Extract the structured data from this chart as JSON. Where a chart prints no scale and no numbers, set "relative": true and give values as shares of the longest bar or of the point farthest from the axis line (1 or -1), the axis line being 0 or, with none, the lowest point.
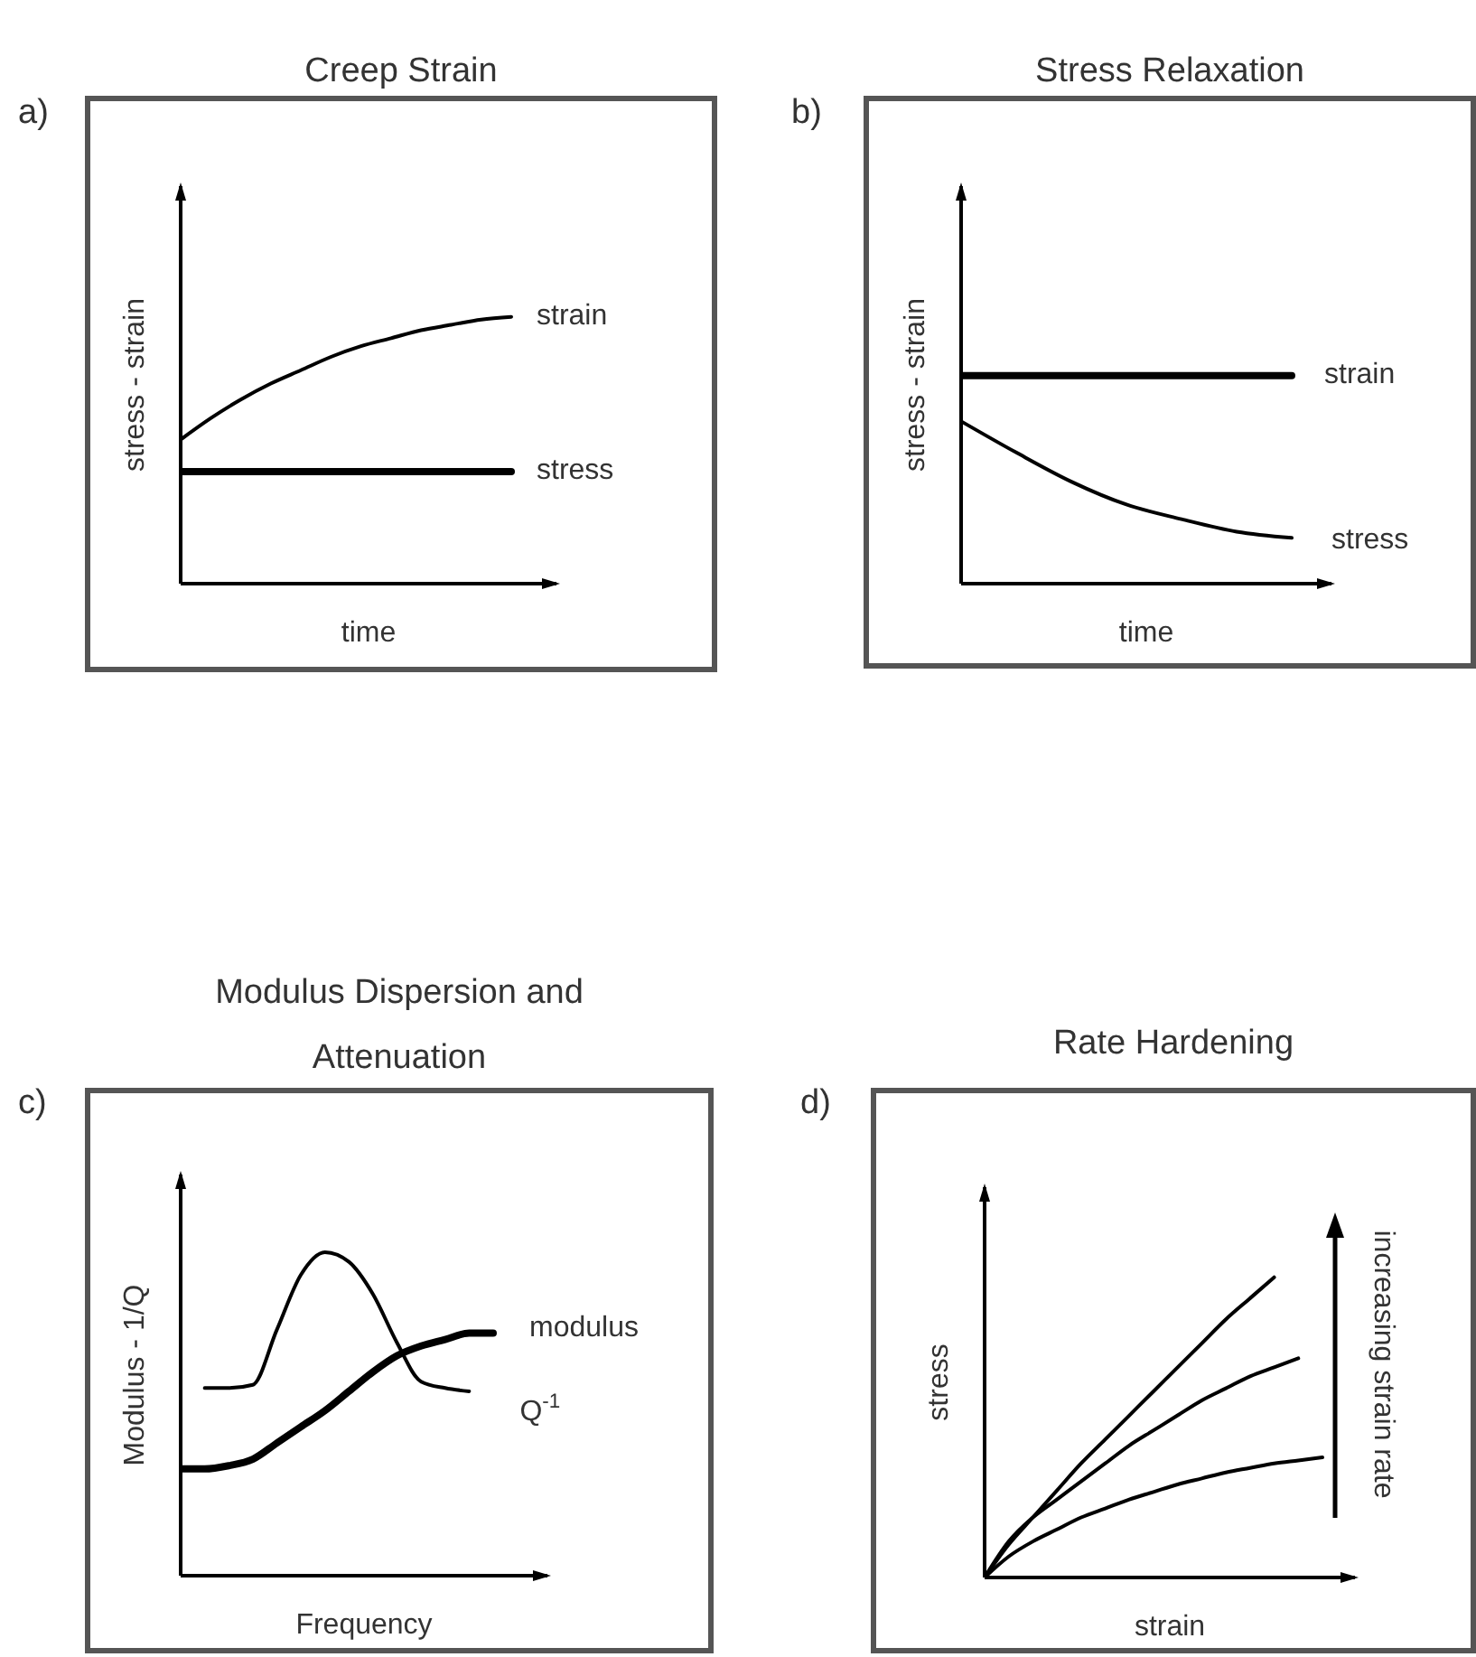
{
  "chart_data": [
    {
      "type": "line",
      "title": "Creep Strain",
      "xlabel": "time",
      "ylabel": "stress  -  strain",
      "relative": true,
      "marker": "none",
      "annotations": [
        "a)"
      ],
      "categories": [
        null,
        null,
        null,
        null,
        null,
        null,
        null,
        null,
        null,
        null,
        null,
        null
      ],
      "series": [
        {
          "name": "strain",
          "color": "#000000",
          "values": [
            0.54,
            0.62,
            0.69,
            0.75,
            0.8,
            0.85,
            0.89,
            0.92,
            0.95,
            0.97,
            0.99,
            1
          ]
        },
        {
          "name": "stress",
          "color": "#000000",
          "values": [
            0.42,
            0.42,
            0.42,
            0.42,
            0.42,
            0.42,
            0.42,
            0.42,
            0.42,
            0.42,
            0.42,
            0.42
          ]
        }
      ]
    },
    {
      "type": "line",
      "title": "Stress Relaxation",
      "xlabel": "time",
      "ylabel": "stress  -  strain",
      "relative": true,
      "marker": "none",
      "annotations": [
        "b)"
      ],
      "categories": [
        null,
        null,
        null,
        null,
        null,
        null,
        null
      ],
      "series": [
        {
          "name": "strain",
          "color": "#000000",
          "values": [
            1,
            1,
            1,
            1,
            1,
            1,
            1
          ]
        },
        {
          "name": "stress",
          "color": "#000000",
          "values": [
            0.78,
            0.63,
            0.49,
            0.38,
            0.31,
            0.25,
            0.22
          ]
        }
      ]
    },
    {
      "type": "line",
      "title": "Modulus Dispersion and Attenuation",
      "xlabel": "Frequency",
      "ylabel": "Modulus  -  1/Q",
      "relative": true,
      "marker": "none",
      "annotations": [
        "c)"
      ],
      "categories": [
        null,
        null,
        null,
        null,
        null,
        null,
        null,
        null,
        null,
        null,
        null,
        null,
        null,
        null
      ],
      "series": [
        {
          "name": "modulus",
          "color": "#000000",
          "values": [
            0.33,
            0.33,
            0.34,
            0.36,
            0.41,
            0.46,
            0.51,
            0.57,
            0.63,
            0.68,
            0.71,
            0.73,
            0.75,
            0.75
          ]
        },
        {
          "name": "Q$^{-1}$",
          "color": "#000000",
          "values": [
            null,
            0.58,
            0.58,
            0.59,
            0.76,
            0.93,
            1.0,
            0.97,
            0.87,
            0.72,
            0.6,
            0.58,
            0.57,
            null
          ]
        }
      ]
    },
    {
      "type": "line",
      "title": "Rate Hardening",
      "xlabel": "strain",
      "ylabel": "stress",
      "relative": true,
      "marker": "none",
      "annotations": [
        "d)",
        "increasing strain rate"
      ],
      "categories": [
        null,
        null,
        null,
        null,
        null,
        null,
        null,
        null,
        null,
        null,
        null,
        null,
        null,
        null,
        null
      ],
      "series": [
        {
          "color": "#000000",
          "values": [
            0,
            0.11,
            0.2,
            0.29,
            0.38,
            0.46,
            0.54,
            0.62,
            0.7,
            0.78,
            0.86,
            0.93,
            1,
            null,
            null
          ]
        },
        {
          "color": "#000000",
          "values": [
            0,
            0.12,
            0.2,
            0.26,
            0.32,
            0.38,
            0.44,
            0.49,
            0.54,
            0.59,
            0.63,
            0.67,
            0.7,
            0.73,
            null
          ]
        },
        {
          "color": "#000000",
          "values": [
            0,
            0.07,
            0.12,
            0.16,
            0.2,
            0.23,
            0.26,
            0.285,
            0.31,
            0.33,
            0.35,
            0.365,
            0.38,
            0.39,
            0.4
          ]
        }
      ]
    }
  ]
}
